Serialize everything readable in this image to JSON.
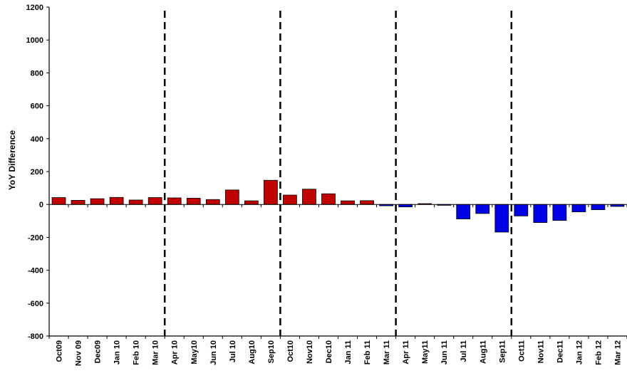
{
  "chart_data": {
    "type": "bar",
    "title": "",
    "xlabel": "",
    "ylabel": "YoY Difference",
    "ylim": [
      -800,
      1200
    ],
    "yticks": [
      -800,
      -600,
      -400,
      -200,
      0,
      200,
      400,
      600,
      800,
      1000,
      1200
    ],
    "grid": false,
    "legend": "none",
    "categories": [
      "Oct09",
      "Nov 09",
      "Dec09",
      "Jan 10",
      "Feb 10",
      "Mar 10",
      "Apr 10",
      "May10",
      "Jun 10",
      "Jul 10",
      "Aug10",
      "Sep10",
      "Oct10",
      "Nov10",
      "Dec10",
      "Jan 11",
      "Feb 11",
      "Mar 11",
      "Apr 11",
      "May11",
      "Jun 11",
      "Jul 11",
      "Aug11",
      "Sep11",
      "Oct11",
      "Nov11",
      "Dec11",
      "Jan 12",
      "Feb 12",
      "Mar 12"
    ],
    "values": [
      42,
      25,
      35,
      43,
      27,
      42,
      40,
      38,
      30,
      88,
      22,
      147,
      57,
      93,
      65,
      22,
      23,
      -8,
      -15,
      5,
      -5,
      -88,
      -55,
      -168,
      -70,
      -110,
      -97,
      -45,
      -32,
      -12
    ],
    "dividers_after_category_index": [
      5,
      11,
      17,
      23
    ],
    "colors": {
      "positive": "#c00000",
      "negative": "#0000e6",
      "bar_stroke": "#000000",
      "divider": "#000000"
    }
  }
}
